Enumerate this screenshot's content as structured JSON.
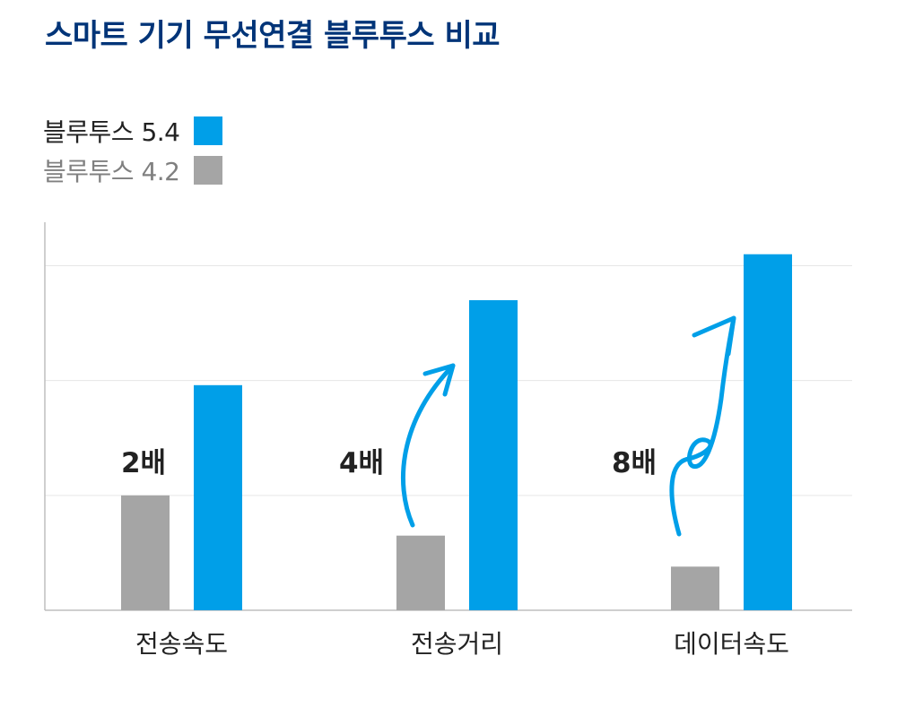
{
  "title": "스마트 기기 무선연결 블루투스 비교",
  "colors": {
    "title": "#003478",
    "bt54": "#009FE8",
    "bt42": "#A5A5A5",
    "axis": "#BFBFBF",
    "grid": "#E6E6E6",
    "annotation": "#222222",
    "category": "#222222"
  },
  "legend": {
    "position": "top-left",
    "items": [
      {
        "label": "블루투스 5.4",
        "color": "#009FE8",
        "text_color": "#222222"
      },
      {
        "label": "블루투스 4.2",
        "color": "#A5A5A5",
        "text_color": "#808080"
      }
    ]
  },
  "chart_data": {
    "type": "bar",
    "title": "스마트 기기 무선연결 블루투스 비교",
    "xlabel": "",
    "ylabel": "",
    "categories": [
      "전송속도",
      "전송거리",
      "데이터속도"
    ],
    "series": [
      {
        "name": "블루투스 4.2",
        "color": "#A5A5A5",
        "values": [
          1,
          0.65,
          0.38
        ]
      },
      {
        "name": "블루투스 5.4",
        "color": "#009FE8",
        "values": [
          1.96,
          2.7,
          3.1
        ]
      }
    ],
    "annotations": [
      "2배",
      "4배",
      "8배"
    ],
    "annotation_arrows": [
      "none",
      "curved-arrow",
      "looped-arrow"
    ],
    "ylim": [
      0,
      3.8
    ],
    "y_gridlines": [
      1,
      2,
      3
    ],
    "y_tick_labels_shown": false,
    "grid": true
  }
}
